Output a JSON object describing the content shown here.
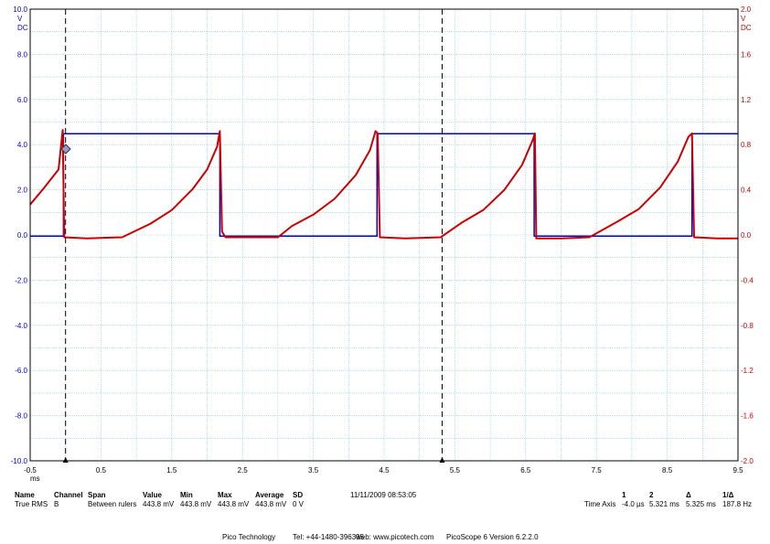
{
  "chart_data": {
    "type": "line",
    "title": "",
    "x_axis": {
      "range": [
        -0.5,
        9.5
      ],
      "ticks": [
        "-0.5",
        "0.5",
        "1.5",
        "2.5",
        "3.5",
        "4.5",
        "5.5",
        "6.5",
        "7.5",
        "8.5",
        "9.5"
      ],
      "unit": "ms"
    },
    "y_left": {
      "range": [
        -10.0,
        10.0
      ],
      "ticks": [
        "10.0",
        "8.0",
        "6.0",
        "4.0",
        "2.0",
        "0.0",
        "-2.0",
        "-4.0",
        "-6.0",
        "-8.0",
        "-10.0"
      ],
      "unit": [
        "V",
        "DC"
      ],
      "color": "#0000cc"
    },
    "y_right": {
      "range": [
        -2.0,
        2.0
      ],
      "ticks": [
        "2.0",
        "1.6",
        "1.2",
        "0.8",
        "0.4",
        "0.0",
        "-0.4",
        "-0.8",
        "-1.2",
        "-1.6",
        "-2.0"
      ],
      "unit": [
        "V",
        "DC"
      ],
      "color": "#cc0000"
    },
    "grid": true,
    "rulers_ms": [
      0.0,
      5.32
    ],
    "series": [
      {
        "axis": "left",
        "color": "#0000cc",
        "points": [
          [
            -0.5,
            -0.05
          ],
          [
            -0.03,
            -0.05
          ],
          [
            -0.03,
            4.48
          ],
          [
            2.18,
            4.48
          ],
          [
            2.18,
            -0.05
          ],
          [
            4.4,
            -0.05
          ],
          [
            4.4,
            4.48
          ],
          [
            6.62,
            4.48
          ],
          [
            6.62,
            -0.05
          ],
          [
            8.85,
            -0.05
          ],
          [
            8.85,
            4.48
          ],
          [
            9.5,
            4.48
          ]
        ]
      },
      {
        "axis": "right",
        "color": "#cc0000",
        "points": [
          [
            -0.5,
            0.27
          ],
          [
            -0.3,
            0.42
          ],
          [
            -0.1,
            0.58
          ],
          [
            -0.04,
            0.93
          ],
          [
            -0.02,
            -0.02
          ],
          [
            0.3,
            -0.03
          ],
          [
            0.8,
            -0.02
          ],
          [
            1.2,
            0.1
          ],
          [
            1.5,
            0.22
          ],
          [
            1.8,
            0.41
          ],
          [
            2.0,
            0.58
          ],
          [
            2.14,
            0.78
          ],
          [
            2.18,
            0.92
          ],
          [
            2.21,
            0.03
          ],
          [
            2.26,
            -0.02
          ],
          [
            2.7,
            -0.02
          ],
          [
            3.0,
            -0.02
          ],
          [
            3.2,
            0.08
          ],
          [
            3.5,
            0.18
          ],
          [
            3.8,
            0.32
          ],
          [
            4.1,
            0.53
          ],
          [
            4.3,
            0.75
          ],
          [
            4.38,
            0.92
          ],
          [
            4.41,
            0.9
          ],
          [
            4.44,
            -0.02
          ],
          [
            4.8,
            -0.03
          ],
          [
            5.3,
            -0.02
          ],
          [
            5.6,
            0.11
          ],
          [
            5.9,
            0.22
          ],
          [
            6.2,
            0.4
          ],
          [
            6.45,
            0.62
          ],
          [
            6.6,
            0.84
          ],
          [
            6.63,
            0.9
          ],
          [
            6.65,
            -0.03
          ],
          [
            7.0,
            -0.03
          ],
          [
            7.4,
            -0.02
          ],
          [
            7.8,
            0.12
          ],
          [
            8.1,
            0.23
          ],
          [
            8.4,
            0.42
          ],
          [
            8.65,
            0.65
          ],
          [
            8.8,
            0.87
          ],
          [
            8.85,
            0.9
          ],
          [
            8.88,
            -0.02
          ],
          [
            9.2,
            -0.03
          ],
          [
            9.5,
            -0.03
          ]
        ]
      }
    ]
  },
  "measurements": {
    "headers": [
      "Name",
      "Channel",
      "Span",
      "Value",
      "Min",
      "Max",
      "Average",
      "SD"
    ],
    "row": [
      "True RMS",
      "B",
      "Between rulers",
      "443.8 mV",
      "443.8 mV",
      "443.8 mV",
      "443.8 mV",
      "0 V"
    ],
    "timestamp": "11/11/2009 08:53:05"
  },
  "rulers": {
    "headers": [
      "1",
      "2",
      "Δ",
      "1/Δ"
    ],
    "row_label": "Time Axis",
    "values": [
      "-4.0 µs",
      "5.321 ms",
      "5.325 ms",
      "187.8 Hz"
    ]
  },
  "footer": {
    "company": "Pico Technology",
    "tel": "Tel: +44-1480-396395",
    "web": "web: www.picotech.com",
    "version": "PicoScope 6 Version 6.2.2.0"
  }
}
